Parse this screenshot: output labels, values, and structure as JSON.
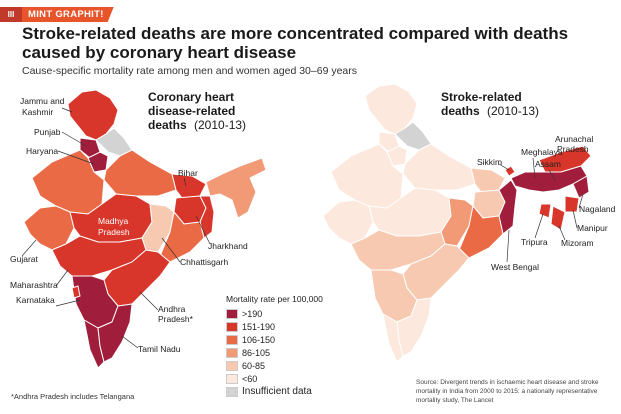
{
  "header": {
    "logo_text": "III",
    "brand": "MINT GRAPHIT!"
  },
  "title": "Stroke-related deaths are more concentrated compared with deaths caused by coronary heart disease",
  "subtitle": "Cause-specific mortality rate among men and women aged 30–69 years",
  "maps": {
    "left": {
      "title_line1": "Coronary heart",
      "title_line2": "disease-related",
      "title_line3": "deaths",
      "title_years": "(2010-13)",
      "labels": {
        "jk1": "Jammu and",
        "jk2": "Kashmir",
        "punjab": "Punjab",
        "haryana": "Haryana",
        "bihar": "Bihar",
        "mp1": "Madhya",
        "mp2": "Pradesh",
        "jharkhand": "Jharkhand",
        "chhattisgarh": "Chhattisgarh",
        "gujarat": "Gujarat",
        "maharashtra": "Maharashtra",
        "karnataka": "Karnataka",
        "ap1": "Andhra",
        "ap2": "Pradesh*",
        "tn": "Tamil Nadu"
      }
    },
    "right": {
      "title_line1": "Stroke-related",
      "title_line2": "deaths",
      "title_years": "(2010-13)",
      "labels": {
        "arunachal1": "Arunachal",
        "arunachal2": "Pradesh",
        "meghalaya": "Meghalaya",
        "sikkim": "Sikkim",
        "assam": "Assam",
        "nagaland": "Nagaland",
        "manipur": "Manipur",
        "tripura": "Tripura",
        "mizoram": "Mizoram",
        "wb": "West Bengal"
      }
    }
  },
  "legend": {
    "title": "Mortality rate per 100,000",
    "items": [
      {
        "label": ">190",
        "color": "#a01e3c"
      },
      {
        "label": "151-190",
        "color": "#d9362b"
      },
      {
        "label": "106-150",
        "color": "#ea6a45"
      },
      {
        "label": "86-105",
        "color": "#f19a75"
      },
      {
        "label": "60-85",
        "color": "#f7c9b1"
      },
      {
        "label": "<60",
        "color": "#fce8dc"
      },
      {
        "label": "Insufficient data",
        "color": "#d3d3d3"
      }
    ]
  },
  "footnote": "*Andhra Pradesh includes Telangana",
  "source": "Source: Divergent trends in ischaemic heart disease and stroke mortality in India from 2000 to 2015: a nationally representative mortality study, The Lancet"
}
